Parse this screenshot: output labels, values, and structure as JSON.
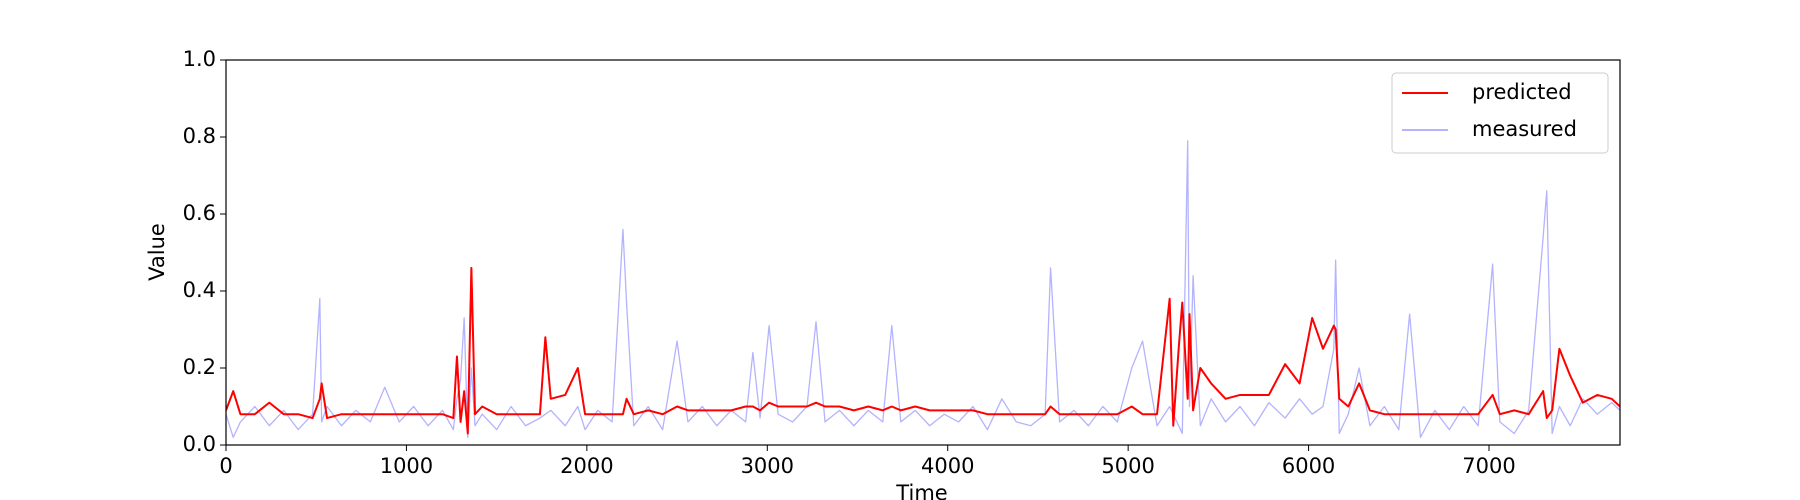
{
  "chart_data": {
    "type": "line",
    "xlabel": "Time",
    "ylabel": "Value",
    "xlim": [
      0,
      7726
    ],
    "ylim": [
      0,
      1
    ],
    "xticks": [
      0,
      1000,
      2000,
      3000,
      4000,
      5000,
      6000,
      7000
    ],
    "yticks": [
      {
        "value": 0,
        "label": "0.0"
      },
      {
        "value": 0.2,
        "label": "0.2"
      },
      {
        "value": 0.4,
        "label": "0.4"
      },
      {
        "value": 0.6,
        "label": "0.6"
      },
      {
        "value": 0.8,
        "label": "0.8"
      },
      {
        "value": 1,
        "label": "1.0"
      }
    ],
    "grid": false,
    "legend": "upper right",
    "x": [
      0,
      40,
      80,
      160,
      240,
      320,
      400,
      480,
      520,
      530,
      560,
      640,
      720,
      800,
      880,
      960,
      1040,
      1120,
      1200,
      1260,
      1280,
      1300,
      1320,
      1340,
      1360,
      1380,
      1420,
      1500,
      1580,
      1660,
      1740,
      1770,
      1800,
      1880,
      1950,
      1990,
      2060,
      2140,
      2200,
      2220,
      2260,
      2340,
      2420,
      2500,
      2560,
      2640,
      2720,
      2800,
      2880,
      2920,
      2960,
      3010,
      3060,
      3140,
      3220,
      3270,
      3320,
      3400,
      3480,
      3560,
      3640,
      3690,
      3740,
      3820,
      3900,
      3980,
      4060,
      4140,
      4220,
      4300,
      4380,
      4460,
      4540,
      4570,
      4620,
      4700,
      4780,
      4860,
      4940,
      5020,
      5080,
      5160,
      5230,
      5250,
      5280,
      5300,
      5330,
      5340,
      5360,
      5400,
      5460,
      5540,
      5620,
      5700,
      5780,
      5870,
      5950,
      6020,
      6080,
      6140,
      6150,
      6170,
      6220,
      6280,
      6340,
      6420,
      6500,
      6560,
      6620,
      6700,
      6780,
      6860,
      6940,
      7020,
      7060,
      7140,
      7220,
      7300,
      7320,
      7350,
      7390,
      7450,
      7520,
      7600,
      7680,
      7726
    ],
    "series": [
      {
        "name": "predicted",
        "color": "#ff0000",
        "values": [
          0.09,
          0.14,
          0.08,
          0.08,
          0.11,
          0.08,
          0.08,
          0.07,
          0.12,
          0.16,
          0.07,
          0.08,
          0.08,
          0.08,
          0.08,
          0.08,
          0.08,
          0.08,
          0.08,
          0.07,
          0.23,
          0.06,
          0.14,
          0.03,
          0.46,
          0.08,
          0.1,
          0.08,
          0.08,
          0.08,
          0.08,
          0.28,
          0.12,
          0.13,
          0.2,
          0.08,
          0.08,
          0.08,
          0.08,
          0.12,
          0.08,
          0.09,
          0.08,
          0.1,
          0.09,
          0.09,
          0.09,
          0.09,
          0.1,
          0.1,
          0.09,
          0.11,
          0.1,
          0.1,
          0.1,
          0.11,
          0.1,
          0.1,
          0.09,
          0.1,
          0.09,
          0.1,
          0.09,
          0.1,
          0.09,
          0.09,
          0.09,
          0.09,
          0.08,
          0.08,
          0.08,
          0.08,
          0.08,
          0.1,
          0.08,
          0.08,
          0.08,
          0.08,
          0.08,
          0.1,
          0.08,
          0.08,
          0.38,
          0.05,
          0.25,
          0.37,
          0.12,
          0.34,
          0.09,
          0.2,
          0.16,
          0.12,
          0.13,
          0.13,
          0.13,
          0.21,
          0.16,
          0.33,
          0.25,
          0.31,
          0.3,
          0.12,
          0.1,
          0.16,
          0.09,
          0.08,
          0.08,
          0.08,
          0.08,
          0.08,
          0.08,
          0.08,
          0.08,
          0.13,
          0.08,
          0.09,
          0.08,
          0.14,
          0.07,
          0.09,
          0.25,
          0.18,
          0.11,
          0.13,
          0.12,
          0.1
        ]
      },
      {
        "name": "measured",
        "color": "#b3b3ff",
        "values": [
          0.08,
          0.02,
          0.06,
          0.1,
          0.05,
          0.09,
          0.04,
          0.08,
          0.38,
          0.06,
          0.1,
          0.05,
          0.09,
          0.06,
          0.15,
          0.06,
          0.1,
          0.05,
          0.09,
          0.04,
          0.12,
          0.17,
          0.33,
          0.02,
          0.2,
          0.05,
          0.08,
          0.04,
          0.1,
          0.05,
          0.07,
          0.08,
          0.09,
          0.05,
          0.1,
          0.04,
          0.09,
          0.06,
          0.56,
          0.37,
          0.05,
          0.1,
          0.04,
          0.27,
          0.06,
          0.1,
          0.05,
          0.09,
          0.06,
          0.24,
          0.07,
          0.31,
          0.08,
          0.06,
          0.1,
          0.32,
          0.06,
          0.09,
          0.05,
          0.09,
          0.06,
          0.31,
          0.06,
          0.09,
          0.05,
          0.08,
          0.06,
          0.1,
          0.04,
          0.12,
          0.06,
          0.05,
          0.08,
          0.46,
          0.06,
          0.09,
          0.05,
          0.1,
          0.06,
          0.2,
          0.27,
          0.05,
          0.1,
          0.08,
          0.05,
          0.03,
          0.79,
          0.1,
          0.44,
          0.05,
          0.12,
          0.06,
          0.1,
          0.05,
          0.11,
          0.07,
          0.12,
          0.08,
          0.1,
          0.25,
          0.48,
          0.03,
          0.08,
          0.2,
          0.05,
          0.1,
          0.04,
          0.34,
          0.02,
          0.09,
          0.04,
          0.1,
          0.05,
          0.47,
          0.06,
          0.03,
          0.09,
          0.54,
          0.66,
          0.03,
          0.1,
          0.05,
          0.12,
          0.08,
          0.11,
          0.09
        ]
      }
    ]
  }
}
